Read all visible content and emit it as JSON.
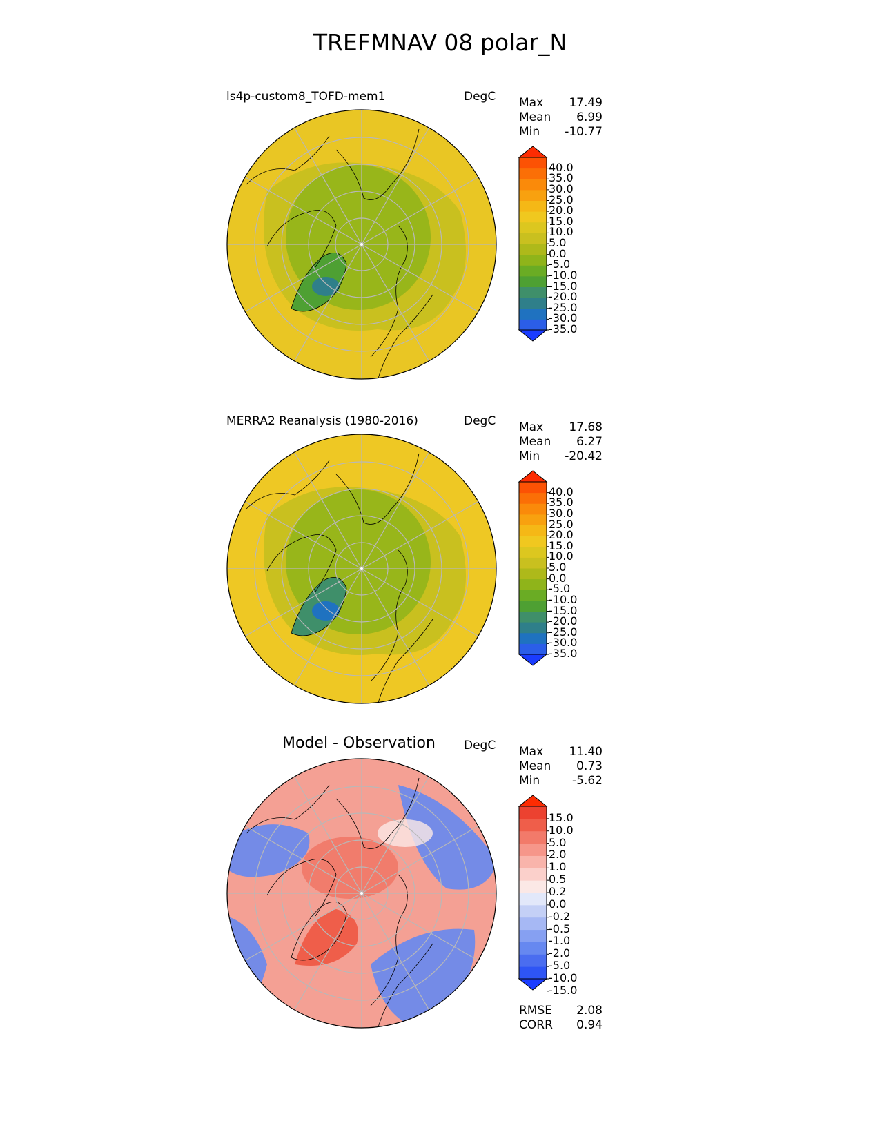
{
  "title": "TREFMNAV 08 polar_N",
  "panels": [
    {
      "label": "ls4p-custom8_TOFD-mem1",
      "units": "DegC",
      "stats": {
        "Max": "17.49",
        "Mean": "6.99",
        "Min": "-10.77"
      },
      "colorbar": {
        "ticks": [
          "40.0",
          "35.0",
          "30.0",
          "25.0",
          "20.0",
          "15.0",
          "10.0",
          "5.0",
          "0.0",
          "-5.0",
          "-10.0",
          "-15.0",
          "-20.0",
          "-25.0",
          "-30.0",
          "-35.0"
        ],
        "colors": [
          "#1a3cff",
          "#2b5ee8",
          "#1f72c0",
          "#2f7f8a",
          "#3f8f6a",
          "#4ea033",
          "#6aac24",
          "#8fb41a",
          "#aeb91a",
          "#c9c01f",
          "#dcc71f",
          "#f0c81f",
          "#f5b816",
          "#f8a10f",
          "#fa8a0a",
          "#fb6f06",
          "#fc5204",
          "#fd2c02"
        ]
      },
      "map": {
        "ocean": "#e9c624",
        "land_mid": "#c9c01f",
        "arctic": "#8fb41a",
        "greenland": "#4ea033",
        "greenland_core": "#2f7f8a"
      }
    },
    {
      "label": "MERRA2 Reanalysis (1980-2016)",
      "units": "DegC",
      "stats": {
        "Max": "17.68",
        "Mean": "6.27",
        "Min": "-20.42"
      },
      "colorbar": {
        "ticks": [
          "40.0",
          "35.0",
          "30.0",
          "25.0",
          "20.0",
          "15.0",
          "10.0",
          "5.0",
          "0.0",
          "-5.0",
          "-10.0",
          "-15.0",
          "-20.0",
          "-25.0",
          "-30.0",
          "-35.0"
        ],
        "colors": [
          "#1a3cff",
          "#2b5ee8",
          "#1f72c0",
          "#2f7f8a",
          "#3f8f6a",
          "#4ea033",
          "#6aac24",
          "#8fb41a",
          "#aeb91a",
          "#c9c01f",
          "#dcc71f",
          "#f0c81f",
          "#f5b816",
          "#f8a10f",
          "#fa8a0a",
          "#fb6f06",
          "#fc5204",
          "#fd2c02"
        ]
      },
      "map": {
        "ocean": "#eec824",
        "land_mid": "#c9c01f",
        "arctic": "#8fb41a",
        "greenland": "#3f8f6a",
        "greenland_core": "#1f72c0"
      }
    },
    {
      "label": "Model - Observation",
      "units": "DegC",
      "stats": {
        "Max": "11.40",
        "Mean": "0.73",
        "Min": "-5.62"
      },
      "colorbar": {
        "ticks": [
          "15.0",
          "10.0",
          "5.0",
          "2.0",
          "1.0",
          "0.5",
          "0.2",
          "0.0",
          "-0.2",
          "-0.5",
          "-1.0",
          "-2.0",
          "-5.0",
          "-10.0",
          "-15.0"
        ],
        "colors": [
          "#1a3cff",
          "#2e55f5",
          "#4a6df0",
          "#6688f0",
          "#86a0f2",
          "#a6b8f4",
          "#c4d0f6",
          "#e2e8fa",
          "#fbe8e6",
          "#fbd0cb",
          "#f9b4ab",
          "#f6968a",
          "#f27a6a",
          "#ef5e4a",
          "#ec4230",
          "#fd2c02"
        ]
      },
      "map": {
        "ocean": "#f4a094",
        "warm": "#ef5e4a",
        "cool": "#6688f0",
        "neutral": "#fbe8e6"
      },
      "footer": {
        "RMSE": "2.08",
        "CORR": "0.94"
      }
    }
  ]
}
